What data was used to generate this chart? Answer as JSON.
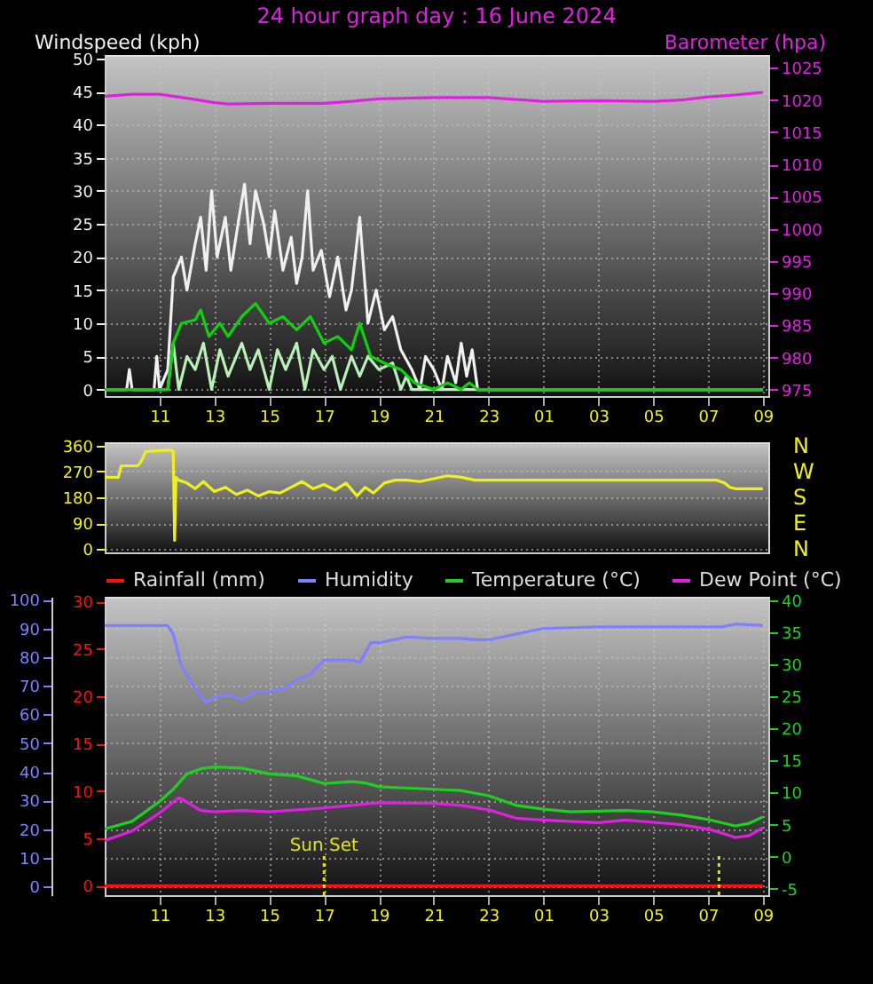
{
  "chart_data": [
    {
      "type": "line",
      "title": "24 hour graph day : 16 June 2024",
      "ylabel": "Windspeed (kph)",
      "y2label": "Barometer (hpa)",
      "xlim": [
        "2024-06-16T09:00",
        "2024-06-17T09:12"
      ],
      "xticks": [
        {
          "value": "2024-06-16T11:00",
          "label": "11"
        },
        {
          "value": "2024-06-16T13:00",
          "label": "13"
        },
        {
          "value": "2024-06-16T15:00",
          "label": "15"
        },
        {
          "value": "2024-06-16T17:00",
          "label": "17"
        },
        {
          "value": "2024-06-16T19:00",
          "label": "19"
        },
        {
          "value": "2024-06-16T21:00",
          "label": "21"
        },
        {
          "value": "2024-06-16T23:00",
          "label": "23"
        },
        {
          "value": "2024-06-17T01:00",
          "label": "01"
        },
        {
          "value": "2024-06-17T03:00",
          "label": "03"
        },
        {
          "value": "2024-06-17T05:00",
          "label": "05"
        },
        {
          "value": "2024-06-17T07:00",
          "label": "07"
        },
        {
          "value": "2024-06-17T09:00",
          "label": "09"
        }
      ],
      "ylim": [
        -1,
        50.5
      ],
      "yticks": [
        0,
        5,
        10,
        15,
        20,
        25,
        30,
        35,
        40,
        45,
        50
      ],
      "y2lim": [
        974,
        1027
      ],
      "y2ticks": [
        975,
        980,
        985,
        990,
        995,
        1000,
        1005,
        1010,
        1015,
        1020,
        1025
      ],
      "grid": true,
      "series": [
        {
          "color": "#f0f0f0",
          "x": [
            "2024-06-16T09:00",
            "2024-06-16T09:48",
            "2024-06-16T09:54",
            "2024-06-16T10:00",
            "2024-06-16T10:48",
            "2024-06-16T10:54",
            "2024-06-16T11:00",
            "2024-06-16T11:18",
            "2024-06-16T11:30",
            "2024-06-16T11:48",
            "2024-06-16T12:00",
            "2024-06-16T12:18",
            "2024-06-16T12:30",
            "2024-06-16T12:42",
            "2024-06-16T12:54",
            "2024-06-16T13:06",
            "2024-06-16T13:24",
            "2024-06-16T13:36",
            "2024-06-16T13:54",
            "2024-06-16T14:06",
            "2024-06-16T14:18",
            "2024-06-16T14:30",
            "2024-06-16T14:48",
            "2024-06-16T15:00",
            "2024-06-16T15:12",
            "2024-06-16T15:30",
            "2024-06-16T15:48",
            "2024-06-16T16:00",
            "2024-06-16T16:12",
            "2024-06-16T16:24",
            "2024-06-16T16:36",
            "2024-06-16T16:54",
            "2024-06-16T17:12",
            "2024-06-16T17:30",
            "2024-06-16T17:48",
            "2024-06-16T18:00",
            "2024-06-16T18:18",
            "2024-06-16T18:36",
            "2024-06-16T18:54",
            "2024-06-16T19:12",
            "2024-06-16T19:30",
            "2024-06-16T19:48",
            "2024-06-16T20:12",
            "2024-06-16T20:30",
            "2024-06-16T20:42",
            "2024-06-16T21:00",
            "2024-06-16T21:18",
            "2024-06-16T21:30",
            "2024-06-16T21:48",
            "2024-06-16T22:00",
            "2024-06-16T22:12",
            "2024-06-16T22:24",
            "2024-06-16T22:36",
            "2024-06-17T09:00"
          ],
          "values": [
            0,
            0,
            3,
            0,
            0,
            5,
            0,
            3,
            17,
            20,
            15,
            22,
            26,
            18,
            30,
            20,
            26,
            18,
            26,
            31,
            22,
            30,
            25,
            20,
            27,
            18,
            23,
            16,
            20,
            30,
            18,
            21,
            14,
            20,
            12,
            15,
            26,
            10,
            15,
            9,
            11,
            6,
            3,
            0,
            5,
            3,
            0,
            5,
            1,
            7,
            2,
            6,
            0,
            0
          ]
        },
        {
          "color": "#b8f0b8",
          "x": [
            "2024-06-16T09:00",
            "2024-06-16T11:18",
            "2024-06-16T11:30",
            "2024-06-16T11:42",
            "2024-06-16T12:00",
            "2024-06-16T12:18",
            "2024-06-16T12:36",
            "2024-06-16T12:54",
            "2024-06-16T13:12",
            "2024-06-16T13:30",
            "2024-06-16T14:00",
            "2024-06-16T14:18",
            "2024-06-16T14:36",
            "2024-06-16T15:00",
            "2024-06-16T15:18",
            "2024-06-16T15:36",
            "2024-06-16T16:00",
            "2024-06-16T16:18",
            "2024-06-16T16:36",
            "2024-06-16T17:00",
            "2024-06-16T17:18",
            "2024-06-16T17:36",
            "2024-06-16T18:00",
            "2024-06-16T18:18",
            "2024-06-16T18:36",
            "2024-06-16T19:00",
            "2024-06-16T19:30",
            "2024-06-16T19:48",
            "2024-06-16T20:00",
            "2024-06-16T20:12",
            "2024-06-17T09:00"
          ],
          "values": [
            0,
            0,
            7,
            0,
            5,
            3,
            7,
            0,
            6,
            2,
            7,
            3,
            6,
            0,
            6,
            3,
            7,
            0,
            6,
            3,
            5,
            0,
            5,
            2,
            5,
            3,
            4,
            0,
            2,
            0,
            0
          ]
        },
        {
          "color": "#10d010",
          "x": [
            "2024-06-16T09:00",
            "2024-06-16T11:18",
            "2024-06-16T11:30",
            "2024-06-16T11:48",
            "2024-06-16T12:18",
            "2024-06-16T12:30",
            "2024-06-16T12:48",
            "2024-06-16T13:12",
            "2024-06-16T13:30",
            "2024-06-16T14:00",
            "2024-06-16T14:30",
            "2024-06-16T15:00",
            "2024-06-16T15:30",
            "2024-06-16T16:00",
            "2024-06-16T16:30",
            "2024-06-16T17:00",
            "2024-06-16T17:30",
            "2024-06-16T18:00",
            "2024-06-16T18:18",
            "2024-06-16T18:42",
            "2024-06-16T19:12",
            "2024-06-16T19:48",
            "2024-06-16T20:18",
            "2024-06-16T21:00",
            "2024-06-16T21:30",
            "2024-06-16T22:00",
            "2024-06-16T22:18",
            "2024-06-16T22:36",
            "2024-06-17T09:00"
          ],
          "values": [
            0,
            0,
            7,
            10,
            10.5,
            12,
            8,
            10,
            8,
            11,
            13,
            10,
            11,
            9,
            11,
            7,
            8,
            6,
            10,
            5,
            4,
            3,
            1,
            0,
            1,
            0,
            1,
            0,
            0
          ]
        },
        {
          "color": "#e020e0",
          "axis": "y2",
          "x": [
            "2024-06-16T09:00",
            "2024-06-16T10:00",
            "2024-06-16T11:00",
            "2024-06-16T12:00",
            "2024-06-16T13:00",
            "2024-06-16T13:30",
            "2024-06-16T15:00",
            "2024-06-16T17:00",
            "2024-06-16T18:00",
            "2024-06-16T19:00",
            "2024-06-16T21:00",
            "2024-06-16T23:00",
            "2024-06-17T00:00",
            "2024-06-17T01:00",
            "2024-06-17T03:00",
            "2024-06-17T05:00",
            "2024-06-17T06:00",
            "2024-06-17T07:00",
            "2024-06-17T08:00",
            "2024-06-17T09:00"
          ],
          "values": [
            1020.6,
            1020.9,
            1020.9,
            1020.3,
            1019.6,
            1019.4,
            1019.5,
            1019.5,
            1019.8,
            1020.2,
            1020.4,
            1020.4,
            1020.1,
            1019.8,
            1019.9,
            1019.8,
            1020,
            1020.5,
            1020.8,
            1021.2
          ]
        }
      ]
    },
    {
      "type": "line",
      "tick_labels": "y",
      "xlim": [
        "2024-06-16T09:00",
        "2024-06-17T09:12"
      ],
      "ylim": [
        -12,
        372
      ],
      "yticks": [
        0,
        90,
        180,
        270,
        360
      ],
      "annotations": [
        "N",
        "W",
        "S",
        "E",
        "N"
      ],
      "grid": true,
      "series": [
        {
          "color": "#f0f020",
          "x": [
            "2024-06-16T09:00",
            "2024-06-16T09:30",
            "2024-06-16T09:36",
            "2024-06-16T10:12",
            "2024-06-16T10:18",
            "2024-06-16T10:30",
            "2024-06-16T11:24",
            "2024-06-16T11:30",
            "2024-06-16T11:33",
            "2024-06-16T11:36",
            "2024-06-16T11:42",
            "2024-06-16T12:00",
            "2024-06-16T12:18",
            "2024-06-16T12:36",
            "2024-06-16T13:00",
            "2024-06-16T13:24",
            "2024-06-16T13:48",
            "2024-06-16T14:12",
            "2024-06-16T14:36",
            "2024-06-16T15:00",
            "2024-06-16T15:24",
            "2024-06-16T15:48",
            "2024-06-16T16:12",
            "2024-06-16T16:36",
            "2024-06-16T17:00",
            "2024-06-16T17:24",
            "2024-06-16T17:48",
            "2024-06-16T18:12",
            "2024-06-16T18:30",
            "2024-06-16T18:48",
            "2024-06-16T19:12",
            "2024-06-16T19:36",
            "2024-06-16T20:00",
            "2024-06-16T20:30",
            "2024-06-16T21:00",
            "2024-06-16T21:30",
            "2024-06-16T22:00",
            "2024-06-16T22:30",
            "2024-06-16T23:00",
            "2024-06-17T07:18",
            "2024-06-17T07:36",
            "2024-06-17T07:48",
            "2024-06-17T08:00",
            "2024-06-17T09:00"
          ],
          "values": [
            250,
            250,
            290,
            290,
            300,
            340,
            345,
            340,
            30,
            250,
            240,
            230,
            210,
            235,
            200,
            215,
            190,
            205,
            185,
            200,
            195,
            215,
            235,
            210,
            225,
            205,
            230,
            185,
            215,
            195,
            230,
            240,
            240,
            235,
            245,
            255,
            250,
            240,
            240,
            240,
            230,
            215,
            210,
            210
          ]
        }
      ]
    },
    {
      "type": "line",
      "legend": "top",
      "xlim": [
        "2024-06-16T09:00",
        "2024-06-17T09:12"
      ],
      "xticks": [
        {
          "value": "2024-06-16T11:00",
          "label": "11"
        },
        {
          "value": "2024-06-16T13:00",
          "label": "13"
        },
        {
          "value": "2024-06-16T15:00",
          "label": "15"
        },
        {
          "value": "2024-06-16T17:00",
          "label": "17"
        },
        {
          "value": "2024-06-16T19:00",
          "label": "19"
        },
        {
          "value": "2024-06-16T21:00",
          "label": "21"
        },
        {
          "value": "2024-06-16T23:00",
          "label": "23"
        },
        {
          "value": "2024-06-17T01:00",
          "label": "01"
        },
        {
          "value": "2024-06-17T03:00",
          "label": "03"
        },
        {
          "value": "2024-06-17T05:00",
          "label": "05"
        },
        {
          "value": "2024-06-17T07:00",
          "label": "07"
        },
        {
          "value": "2024-06-17T09:00",
          "label": "09"
        }
      ],
      "ylim": [
        -3,
        101
      ],
      "yticks": [
        0,
        10,
        20,
        30,
        40,
        50,
        60,
        70,
        80,
        90,
        100
      ],
      "y2lim": [
        -6,
        40.5
      ],
      "y2ticks": [
        -5,
        0,
        5,
        10,
        15,
        20,
        25,
        30,
        35,
        40
      ],
      "y3lim": [
        -1,
        30.5
      ],
      "y3ticks": [
        0,
        5,
        10,
        15,
        20,
        25,
        30
      ],
      "grid": true,
      "ref_lines": [
        {
          "axis": "x",
          "value": "2024-06-16T17:00",
          "label": "Sun Set",
          "color": "#e0e020",
          "line_style": "dotted"
        },
        {
          "axis": "x",
          "value": "2024-06-17T07:24",
          "color": "#e0e020",
          "line_style": "dotted"
        }
      ],
      "series": [
        {
          "name": "Rainfall (mm)",
          "color": "#ff1010",
          "axis": "y3",
          "x": [
            "2024-06-16T09:00",
            "2024-06-17T09:00"
          ],
          "values": [
            0,
            0
          ]
        },
        {
          "name": "Humidity",
          "color": "#8080ff",
          "x": [
            "2024-06-16T09:00",
            "2024-06-16T11:18",
            "2024-06-16T11:30",
            "2024-06-16T11:48",
            "2024-06-16T12:18",
            "2024-06-16T12:42",
            "2024-06-16T13:00",
            "2024-06-16T13:30",
            "2024-06-16T14:00",
            "2024-06-16T14:30",
            "2024-06-16T15:00",
            "2024-06-16T15:30",
            "2024-06-16T16:00",
            "2024-06-16T16:30",
            "2024-06-16T17:00",
            "2024-06-16T18:00",
            "2024-06-16T18:18",
            "2024-06-16T18:42",
            "2024-06-16T19:00",
            "2024-06-16T20:00",
            "2024-06-16T21:00",
            "2024-06-16T22:00",
            "2024-06-16T22:30",
            "2024-06-16T23:00",
            "2024-06-17T00:00",
            "2024-06-17T01:00",
            "2024-06-17T03:00",
            "2024-06-17T07:30",
            "2024-06-17T08:00",
            "2024-06-17T09:00"
          ],
          "values": [
            91,
            91,
            88,
            77,
            69,
            64,
            66,
            67,
            65,
            68,
            68,
            69,
            72,
            74,
            79,
            79,
            78,
            85,
            85,
            87,
            86.5,
            86.5,
            86,
            86,
            88,
            90,
            90.5,
            90.5,
            91.5,
            91
          ]
        },
        {
          "name": "Temperature (°C)",
          "color": "#20d020",
          "axis": "y2",
          "x": [
            "2024-06-16T09:00",
            "2024-06-16T10:00",
            "2024-06-16T11:00",
            "2024-06-16T11:30",
            "2024-06-16T12:00",
            "2024-06-16T12:30",
            "2024-06-16T13:00",
            "2024-06-16T14:00",
            "2024-06-16T15:00",
            "2024-06-16T16:00",
            "2024-06-16T17:00",
            "2024-06-16T18:00",
            "2024-06-16T18:30",
            "2024-06-16T19:00",
            "2024-06-16T21:00",
            "2024-06-16T22:00",
            "2024-06-16T23:00",
            "2024-06-17T00:00",
            "2024-06-17T01:00",
            "2024-06-17T02:00",
            "2024-06-17T04:00",
            "2024-06-17T05:00",
            "2024-06-17T06:00",
            "2024-06-17T07:00",
            "2024-06-17T08:00",
            "2024-06-17T08:30",
            "2024-06-17T09:00"
          ],
          "values": [
            4.3,
            5.5,
            8.6,
            10.5,
            12.9,
            13.7,
            14,
            13.8,
            12.9,
            12.6,
            11.4,
            11.7,
            11.5,
            10.9,
            10.5,
            10.3,
            9.5,
            8,
            7.4,
            7,
            7.2,
            7,
            6.5,
            5.8,
            4.8,
            5.2,
            6.2
          ]
        },
        {
          "name": "Dew Point (°C)",
          "color": "#e020e0",
          "axis": "y2",
          "x": [
            "2024-06-16T09:00",
            "2024-06-16T10:00",
            "2024-06-16T11:00",
            "2024-06-16T11:42",
            "2024-06-16T12:00",
            "2024-06-16T12:30",
            "2024-06-16T13:00",
            "2024-06-16T14:00",
            "2024-06-16T15:00",
            "2024-06-16T17:00",
            "2024-06-16T19:00",
            "2024-06-16T21:00",
            "2024-06-16T22:00",
            "2024-06-16T23:00",
            "2024-06-17T00:00",
            "2024-06-17T01:00",
            "2024-06-17T03:00",
            "2024-06-17T04:00",
            "2024-06-17T06:00",
            "2024-06-17T07:00",
            "2024-06-17T07:30",
            "2024-06-17T08:00",
            "2024-06-17T08:30",
            "2024-06-17T09:00"
          ],
          "values": [
            2.5,
            4,
            6.8,
            9.2,
            8.5,
            7.2,
            7,
            7.2,
            7,
            7.6,
            8.4,
            8.3,
            8,
            7.3,
            6,
            5.7,
            5.3,
            5.7,
            5,
            4.3,
            3.7,
            3,
            3.3,
            4.5
          ]
        }
      ]
    }
  ]
}
